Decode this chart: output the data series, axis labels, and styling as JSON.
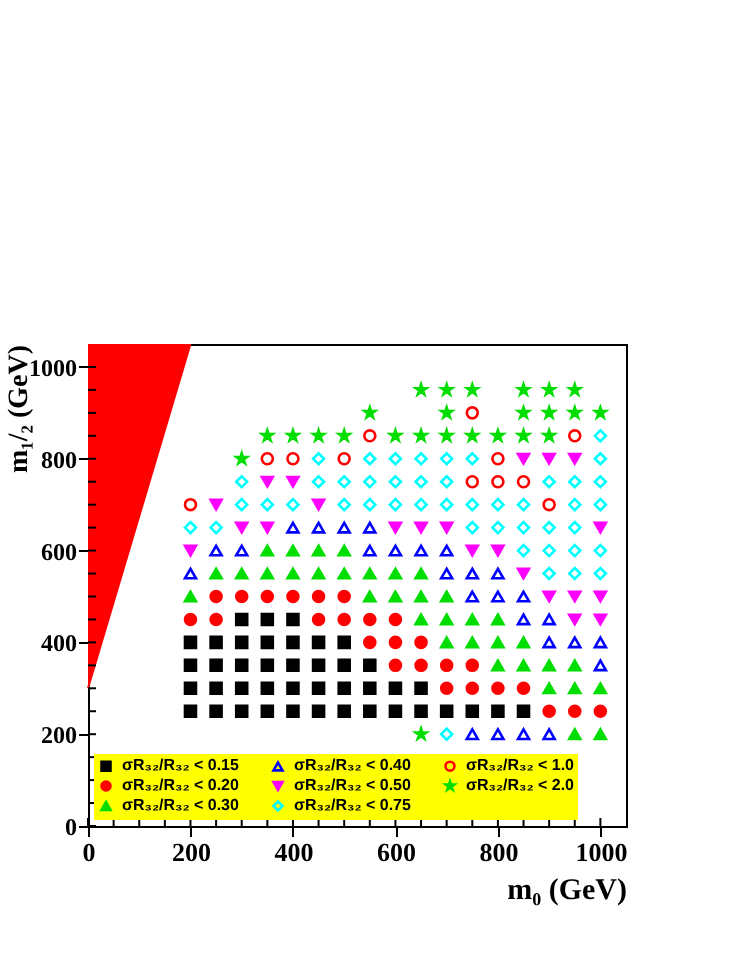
{
  "chart_data": {
    "type": "scatter",
    "xlabel": "m₀ (GeV)",
    "ylabel": "m₁/₂ (GeV)",
    "xlim": [
      0,
      1050
    ],
    "ylim": [
      0,
      1050
    ],
    "xticks": [
      0,
      {
        "value": 50,
        "label": null
      },
      {
        "value": 100,
        "label": null
      },
      {
        "value": 150,
        "label": null
      },
      200,
      {
        "value": 250,
        "label": null
      },
      {
        "value": 300,
        "label": null
      },
      {
        "value": 350,
        "label": null
      },
      400,
      {
        "value": 450,
        "label": null
      },
      {
        "value": 500,
        "label": null
      },
      {
        "value": 550,
        "label": null
      },
      600,
      {
        "value": 650,
        "label": null
      },
      {
        "value": 700,
        "label": null
      },
      {
        "value": 750,
        "label": null
      },
      800,
      {
        "value": 850,
        "label": null
      },
      {
        "value": 900,
        "label": null
      },
      {
        "value": 950,
        "label": null
      },
      1000
    ],
    "yticks": [
      0,
      {
        "value": 50,
        "label": null
      },
      {
        "value": 100,
        "label": null
      },
      {
        "value": 150,
        "label": null
      },
      200,
      {
        "value": 250,
        "label": null
      },
      {
        "value": 300,
        "label": null
      },
      {
        "value": 350,
        "label": null
      },
      400,
      {
        "value": 450,
        "label": null
      },
      {
        "value": 500,
        "label": null
      },
      {
        "value": 550,
        "label": null
      },
      600,
      {
        "value": 650,
        "label": null
      },
      {
        "value": 700,
        "label": null
      },
      {
        "value": 750,
        "label": null
      },
      800,
      {
        "value": 850,
        "label": null
      },
      {
        "value": 900,
        "label": null
      },
      {
        "value": 950,
        "label": null
      },
      1000
    ],
    "grid": false,
    "legend": "bottom",
    "series": [
      {
        "type": "area",
        "color": "#ff0000",
        "x": [
          0,
          200
        ],
        "values": [
          300,
          1050
        ]
      },
      {
        "name": "σR₃₂/R₃₂ < 0.15",
        "color": "#000000",
        "marker": "square",
        "x": [
          300,
          350,
          400,
          200,
          250,
          300,
          350,
          400,
          450,
          500,
          200,
          250,
          300,
          350,
          400,
          450,
          500,
          550,
          200,
          250,
          300,
          350,
          400,
          450,
          500,
          550,
          600,
          650,
          200,
          250,
          300,
          350,
          400,
          450,
          500,
          550,
          600,
          650,
          700,
          750,
          800,
          850
        ],
        "values": [
          450,
          450,
          450,
          400,
          400,
          400,
          400,
          400,
          400,
          400,
          350,
          350,
          350,
          350,
          350,
          350,
          350,
          350,
          300,
          300,
          300,
          300,
          300,
          300,
          300,
          300,
          300,
          300,
          250,
          250,
          250,
          250,
          250,
          250,
          250,
          250,
          250,
          250,
          250,
          250,
          250,
          250
        ]
      },
      {
        "name": "σR₃₂/R₃₂ < 0.20",
        "color": "#ff0000",
        "marker": "circle",
        "x": [
          250,
          300,
          350,
          400,
          450,
          500,
          200,
          250,
          450,
          500,
          550,
          600,
          550,
          600,
          650,
          600,
          650,
          700,
          750,
          700,
          750,
          800,
          850,
          900,
          950,
          1000
        ],
        "values": [
          500,
          500,
          500,
          500,
          500,
          500,
          450,
          450,
          450,
          450,
          450,
          450,
          400,
          400,
          400,
          350,
          350,
          350,
          350,
          300,
          300,
          300,
          300,
          250,
          250,
          250
        ]
      },
      {
        "name": "σR₃₂/R₃₂ < 0.30",
        "color": "#00dd00",
        "marker": "triangle",
        "x": [
          350,
          400,
          450,
          500,
          250,
          300,
          350,
          400,
          450,
          500,
          550,
          600,
          650,
          200,
          550,
          600,
          650,
          700,
          650,
          700,
          750,
          800,
          700,
          750,
          800,
          850,
          800,
          850,
          900,
          950,
          900,
          950,
          1000,
          950,
          1000
        ],
        "values": [
          600,
          600,
          600,
          600,
          550,
          550,
          550,
          550,
          550,
          550,
          550,
          550,
          550,
          500,
          500,
          500,
          500,
          500,
          450,
          450,
          450,
          450,
          400,
          400,
          400,
          400,
          350,
          350,
          350,
          350,
          300,
          300,
          300,
          200,
          200
        ]
      },
      {
        "name": "σR₃₂/R₃₂ < 0.40",
        "color": "#0000ff",
        "marker": "triangle-open",
        "x": [
          400,
          450,
          500,
          550,
          250,
          300,
          550,
          600,
          650,
          700,
          200,
          700,
          750,
          800,
          750,
          800,
          850,
          850,
          900,
          900,
          950,
          1000,
          1000,
          750,
          800,
          850,
          900
        ],
        "values": [
          650,
          650,
          650,
          650,
          600,
          600,
          600,
          600,
          600,
          600,
          550,
          550,
          550,
          550,
          500,
          500,
          500,
          450,
          450,
          400,
          400,
          400,
          350,
          200,
          200,
          200,
          200
        ]
      },
      {
        "name": "σR₃₂/R₃₂ < 0.50",
        "color": "#ff00ff",
        "marker": "triangle-down",
        "x": [
          850,
          900,
          950,
          350,
          400,
          250,
          450,
          300,
          350,
          600,
          650,
          700,
          1000,
          200,
          750,
          800,
          850,
          900,
          950,
          1000,
          950,
          1000
        ],
        "values": [
          800,
          800,
          800,
          750,
          750,
          700,
          700,
          650,
          650,
          650,
          650,
          650,
          650,
          600,
          600,
          600,
          550,
          500,
          500,
          500,
          450,
          450
        ]
      },
      {
        "name": "σR₃₂/R₃₂ < 0.75",
        "color": "#00ffff",
        "marker": "diamond-open",
        "x": [
          1000,
          450,
          550,
          600,
          650,
          700,
          750,
          1000,
          300,
          450,
          500,
          550,
          600,
          650,
          700,
          900,
          950,
          1000,
          300,
          350,
          400,
          500,
          550,
          600,
          650,
          700,
          750,
          800,
          850,
          950,
          1000,
          200,
          250,
          750,
          800,
          850,
          900,
          950,
          850,
          900,
          950,
          1000,
          900,
          950,
          1000,
          700
        ],
        "values": [
          850,
          800,
          800,
          800,
          800,
          800,
          800,
          800,
          750,
          750,
          750,
          750,
          750,
          750,
          750,
          750,
          750,
          750,
          700,
          700,
          700,
          700,
          700,
          700,
          700,
          700,
          700,
          700,
          700,
          700,
          700,
          650,
          650,
          650,
          650,
          650,
          650,
          650,
          600,
          600,
          600,
          600,
          550,
          550,
          550,
          200
        ]
      },
      {
        "name": "σR₃₂/R₃₂ < 1.0",
        "color": "#ff0000",
        "marker": "circle-open",
        "x": [
          750,
          550,
          950,
          350,
          400,
          500,
          800,
          750,
          800,
          850,
          200,
          900
        ],
        "values": [
          900,
          850,
          850,
          800,
          800,
          800,
          800,
          750,
          750,
          750,
          700,
          700
        ]
      },
      {
        "name": "σR₃₂/R₃₂ < 2.0",
        "color": "#00dd00",
        "marker": "star",
        "x": [
          650,
          700,
          750,
          850,
          900,
          950,
          550,
          700,
          850,
          900,
          950,
          1000,
          350,
          400,
          450,
          500,
          600,
          650,
          700,
          750,
          800,
          850,
          900,
          300,
          650
        ],
        "values": [
          950,
          950,
          950,
          950,
          950,
          950,
          900,
          900,
          900,
          900,
          900,
          900,
          850,
          850,
          850,
          850,
          850,
          850,
          850,
          850,
          850,
          850,
          850,
          800,
          200
        ]
      }
    ]
  }
}
